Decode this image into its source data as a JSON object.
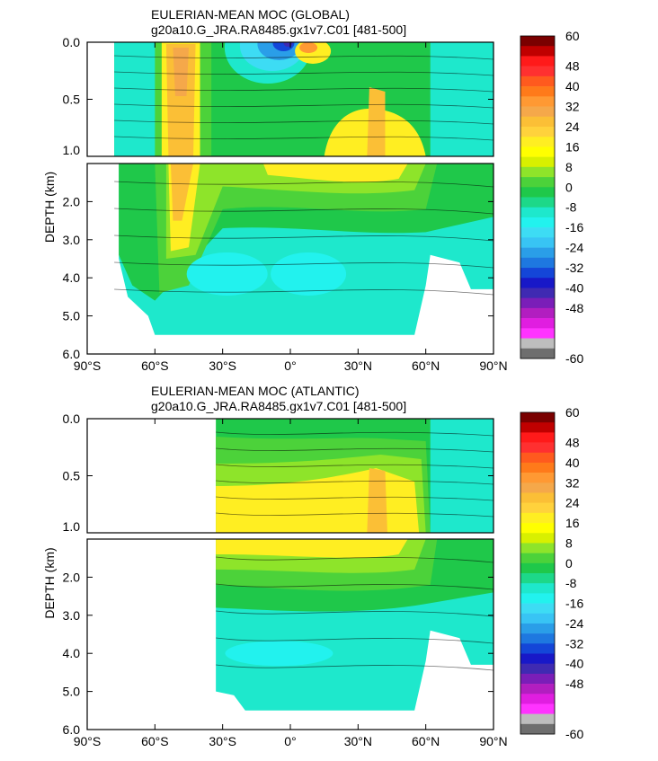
{
  "chart_data": [
    {
      "type": "contour",
      "title": "EULERIAN-MEAN MOC (GLOBAL)",
      "subtitle": "g20a10.G_JRA.RA8485.gx1v7.C01 [481-500]",
      "ylabel": "DEPTH (km)",
      "x_ticks": [
        {
          "value": -90,
          "label": "90°S"
        },
        {
          "value": -60,
          "label": "60°S"
        },
        {
          "value": -30,
          "label": "30°S"
        },
        {
          "value": 0,
          "label": "0°"
        },
        {
          "value": 30,
          "label": "30°N"
        },
        {
          "value": 60,
          "label": "60°N"
        },
        {
          "value": 90,
          "label": "90°N"
        }
      ],
      "y_ticks_upper": [
        "0.0",
        "0.5",
        "1.0"
      ],
      "y_ticks_lower": [
        "2.0",
        "3.0",
        "4.0",
        "5.0",
        "6.0"
      ],
      "xlim": [
        -90,
        90
      ],
      "ylim_upper": [
        0,
        1
      ],
      "ylim_lower": [
        1,
        6
      ],
      "domain": {
        "lat_min": -78,
        "lat_max": 90
      },
      "features": [
        {
          "name": "southern-deacon-cell",
          "lat": -48,
          "depth": 0.5,
          "value": 28
        },
        {
          "name": "surface-negative-cell",
          "lat": -5,
          "depth": 0.05,
          "value": -40
        },
        {
          "name": "nadw-cell",
          "lat": 35,
          "depth": 0.8,
          "value": 16
        },
        {
          "name": "aabw-cell-south",
          "lat": -25,
          "depth": 3.8,
          "value": -12
        },
        {
          "name": "aabw-cell-north",
          "lat": 5,
          "depth": 3.8,
          "value": -12
        }
      ]
    },
    {
      "type": "contour",
      "title": "EULERIAN-MEAN MOC (ATLANTIC)",
      "subtitle": "g20a10.G_JRA.RA8485.gx1v7.C01 [481-500]",
      "ylabel": "DEPTH (km)",
      "x_ticks": [
        {
          "value": -90,
          "label": "90°S"
        },
        {
          "value": -60,
          "label": "60°S"
        },
        {
          "value": -30,
          "label": "30°S"
        },
        {
          "value": 0,
          "label": "0°"
        },
        {
          "value": 30,
          "label": "30°N"
        },
        {
          "value": 60,
          "label": "60°N"
        },
        {
          "value": 90,
          "label": "90°N"
        }
      ],
      "y_ticks_upper": [
        "0.0",
        "0.5",
        "1.0"
      ],
      "y_ticks_lower": [
        "2.0",
        "3.0",
        "4.0",
        "5.0",
        "6.0"
      ],
      "xlim": [
        -90,
        90
      ],
      "ylim_upper": [
        0,
        1
      ],
      "ylim_lower": [
        1,
        6
      ],
      "domain": {
        "lat_min": -33,
        "lat_max": 90
      },
      "features": [
        {
          "name": "nadw-cell",
          "lat": 35,
          "depth": 0.8,
          "value": 20
        },
        {
          "name": "deep-negative-cell",
          "lat": 0,
          "depth": 4.0,
          "value": -6
        }
      ]
    }
  ],
  "colorbar": {
    "labels": [
      "60",
      "48",
      "40",
      "32",
      "24",
      "16",
      "8",
      "0",
      "-8",
      "-16",
      "-24",
      "-32",
      "-40",
      "-48",
      "-60"
    ],
    "colors": [
      "#7a0000",
      "#c00000",
      "#ff1a1a",
      "#ff3030",
      "#ff5a1e",
      "#ff7a1a",
      "#ff9933",
      "#f5a84a",
      "#fbbf36",
      "#ffd23c",
      "#ffee22",
      "#ffff00",
      "#d8f000",
      "#8ee42a",
      "#4cd23a",
      "#1fc84a",
      "#1dd889",
      "#1ee8cc",
      "#22f2ee",
      "#3ddcf4",
      "#38c4f4",
      "#2a9ee8",
      "#1e78e0",
      "#1446d8",
      "#1818c8",
      "#3f2ab2",
      "#7a1eb8",
      "#b21ec0",
      "#e01ee0",
      "#ff33ff",
      "#bdbdbd",
      "#6e6e6e"
    ]
  }
}
